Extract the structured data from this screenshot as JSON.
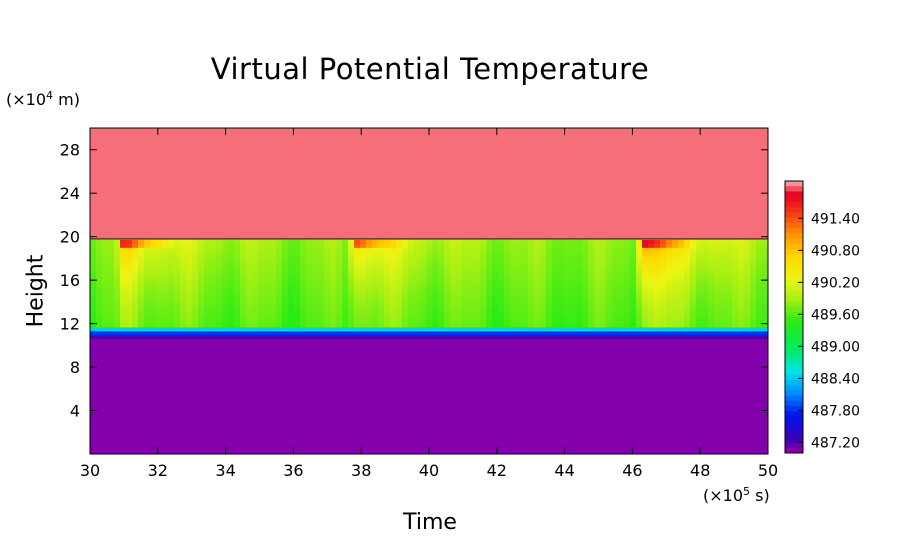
{
  "chart_data": {
    "type": "heatmap",
    "title": "Virtual Potential Temperature",
    "xlabel": "Time",
    "ylabel": "Height",
    "x_unit": {
      "prefix": "(×10",
      "exp": "5",
      "suffix": " s)"
    },
    "y_unit": {
      "prefix": "(×10",
      "exp": "4",
      "suffix": " m)"
    },
    "xlim": [
      30,
      50
    ],
    "ylim": [
      0,
      30
    ],
    "xticks": [
      30,
      32,
      34,
      36,
      38,
      40,
      42,
      44,
      46,
      48,
      50
    ],
    "yticks": [
      4,
      8,
      12,
      16,
      20,
      24,
      28
    ],
    "colorbar": {
      "min": 487.0,
      "max": 492.1,
      "tick_values": [
        491.4,
        490.8,
        490.2,
        489.6,
        489.0,
        488.4,
        487.8,
        487.2
      ],
      "tick_labels": [
        "491.40",
        "490.80",
        "490.20",
        "489.60",
        "489.00",
        "488.40",
        "487.80",
        "487.20"
      ]
    },
    "regions": {
      "lower_uniform": {
        "height_range": [
          0,
          11.3
        ],
        "value": 487.05
      },
      "transition_layer": {
        "height_range": [
          11.3,
          12.3
        ]
      },
      "mixed_layer": {
        "height_range": [
          12.3,
          19.8
        ]
      },
      "upper_uniform": {
        "height_range": [
          19.8,
          30
        ],
        "value": 492.0
      }
    },
    "warm_events_time": [
      31.0,
      37.8,
      46.3
    ]
  },
  "colors": {
    "frame": "#000000",
    "text": "#000000"
  }
}
